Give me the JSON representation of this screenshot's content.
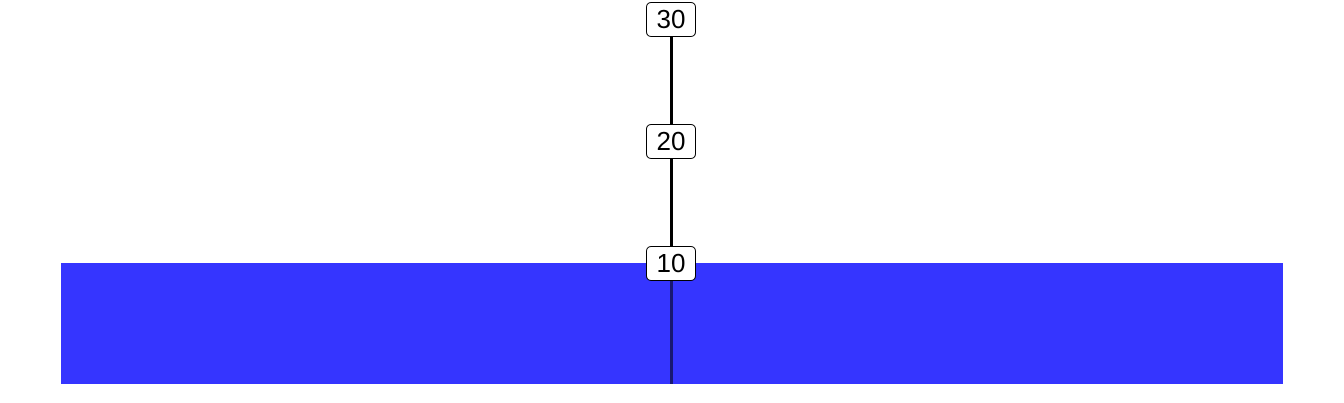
{
  "diagram": {
    "description_free": true,
    "water": {
      "color": "#3535ff",
      "level": 10
    },
    "gauge": {
      "line_color": "#000000",
      "marks": [
        {
          "label": "30",
          "value": 30
        },
        {
          "label": "20",
          "value": 20
        },
        {
          "label": "10",
          "value": 10
        }
      ]
    }
  }
}
